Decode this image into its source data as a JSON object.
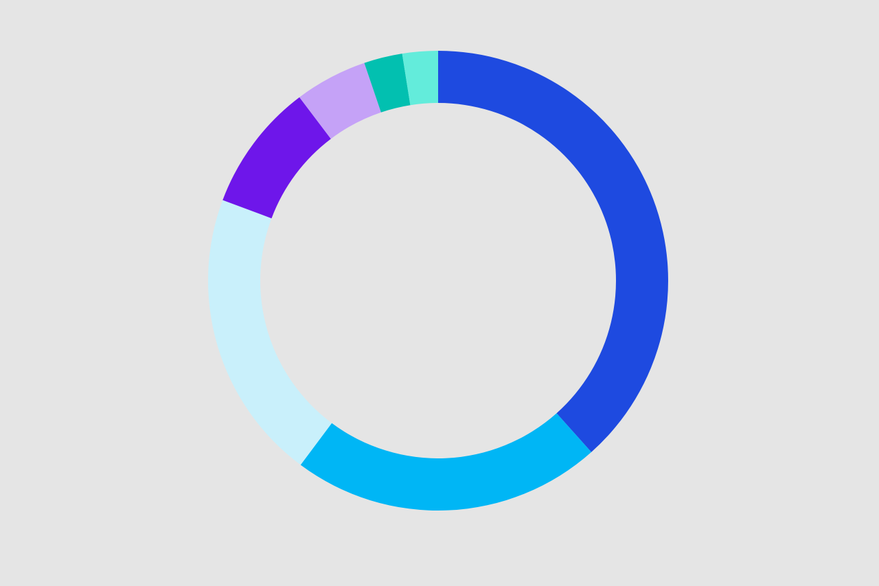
{
  "chart_data": {
    "type": "donut",
    "values": [
      38.4,
      21.8,
      20.5,
      9.0,
      5.1,
      2.7,
      2.5
    ],
    "colors": [
      "#1e4ae0",
      "#00b6f5",
      "#c9f0fb",
      "#6e16ea",
      "#c5a2f7",
      "#02c0b0",
      "#63ecdb"
    ]
  }
}
